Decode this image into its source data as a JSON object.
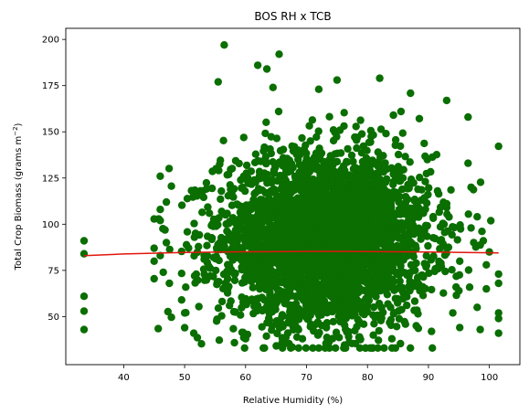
{
  "chart_data": {
    "type": "scatter",
    "title": "BOS RH x TCB",
    "xlabel": "Relative Humidity (%)",
    "ylabel_parts": {
      "main": "Total Crop Biomass (grams m",
      "sup": "−2",
      "close": ")"
    },
    "xlim": [
      30.5,
      105
    ],
    "ylim": [
      24,
      206
    ],
    "x_ticks": [
      40,
      50,
      60,
      70,
      80,
      90,
      100
    ],
    "y_ticks": [
      50,
      75,
      100,
      125,
      150,
      175,
      200
    ],
    "grid": false,
    "colors": {
      "points": "#0a6e00",
      "fit_line": "#e2160d"
    },
    "cluster": {
      "x_mean": 73,
      "x_sd": 8.5,
      "y_mean": 92,
      "y_sd": 23,
      "n_points": 3500
    },
    "points": [
      {
        "x": 33.5,
        "y": 91
      },
      {
        "x": 33.5,
        "y": 84
      },
      {
        "x": 33.5,
        "y": 61
      },
      {
        "x": 33.5,
        "y": 53
      },
      {
        "x": 33.5,
        "y": 43
      },
      {
        "x": 56.5,
        "y": 197
      },
      {
        "x": 65.5,
        "y": 192
      },
      {
        "x": 62,
        "y": 186
      },
      {
        "x": 63.5,
        "y": 184
      },
      {
        "x": 82,
        "y": 179
      },
      {
        "x": 75,
        "y": 178
      },
      {
        "x": 55.5,
        "y": 177
      },
      {
        "x": 64.5,
        "y": 174
      },
      {
        "x": 72,
        "y": 173
      },
      {
        "x": 93,
        "y": 167
      },
      {
        "x": 96.5,
        "y": 158
      },
      {
        "x": 85.5,
        "y": 161
      },
      {
        "x": 46,
        "y": 126
      },
      {
        "x": 46,
        "y": 108
      },
      {
        "x": 47,
        "y": 112
      },
      {
        "x": 46,
        "y": 102
      },
      {
        "x": 45,
        "y": 87
      },
      {
        "x": 45,
        "y": 80
      },
      {
        "x": 46,
        "y": 83
      },
      {
        "x": 47,
        "y": 90
      },
      {
        "x": 46.5,
        "y": 74
      },
      {
        "x": 47.5,
        "y": 68
      },
      {
        "x": 49.5,
        "y": 59
      },
      {
        "x": 50,
        "y": 52
      },
      {
        "x": 50,
        "y": 44
      },
      {
        "x": 51.5,
        "y": 41
      },
      {
        "x": 101.5,
        "y": 73
      },
      {
        "x": 101.5,
        "y": 68
      },
      {
        "x": 101.5,
        "y": 52
      },
      {
        "x": 101.5,
        "y": 49
      },
      {
        "x": 101.5,
        "y": 41
      },
      {
        "x": 100,
        "y": 85
      },
      {
        "x": 99.5,
        "y": 78
      },
      {
        "x": 99.5,
        "y": 65
      },
      {
        "x": 98,
        "y": 55
      },
      {
        "x": 98.5,
        "y": 43
      },
      {
        "x": 99,
        "y": 91
      },
      {
        "x": 98,
        "y": 104
      },
      {
        "x": 97,
        "y": 120
      },
      {
        "x": 96.5,
        "y": 133
      },
      {
        "x": 97,
        "y": 98
      },
      {
        "x": 91.5,
        "y": 118
      },
      {
        "x": 93,
        "y": 109
      },
      {
        "x": 95,
        "y": 64
      },
      {
        "x": 94,
        "y": 52
      },
      {
        "x": 90.5,
        "y": 42
      },
      {
        "x": 60,
        "y": 38
      },
      {
        "x": 66,
        "y": 36
      },
      {
        "x": 72,
        "y": 33
      },
      {
        "x": 77,
        "y": 36
      },
      {
        "x": 84,
        "y": 38
      },
      {
        "x": 88,
        "y": 45
      }
    ],
    "fit_line": {
      "x": [
        33.5,
        40,
        50,
        60,
        70,
        75,
        80,
        90,
        101.5
      ],
      "y": [
        83,
        83.9,
        84.7,
        85.1,
        85.3,
        85.3,
        85.2,
        85,
        84.5
      ]
    }
  }
}
